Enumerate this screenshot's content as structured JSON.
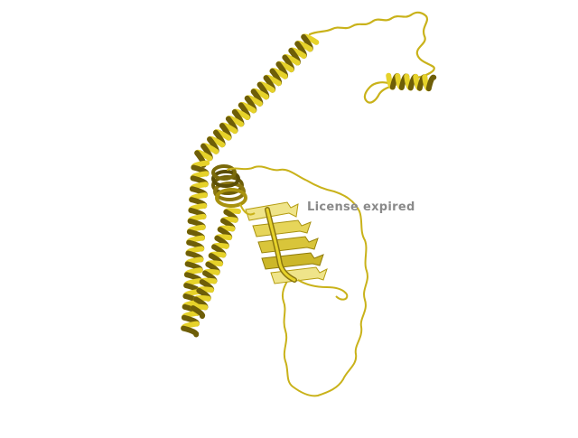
{
  "viewer": {
    "watermark": "License expired"
  },
  "colors": {
    "background": "#ffffff",
    "ribbon_bright": "#e6d22a",
    "ribbon_mid": "#c9b21a",
    "ribbon_dark": "#6e5e08",
    "sheet_pale": "#efe48a",
    "watermark": "#8a8a8a"
  },
  "structure": {
    "representation": "cartoon",
    "elements": [
      "alpha-helix",
      "beta-sheet",
      "coil"
    ]
  }
}
